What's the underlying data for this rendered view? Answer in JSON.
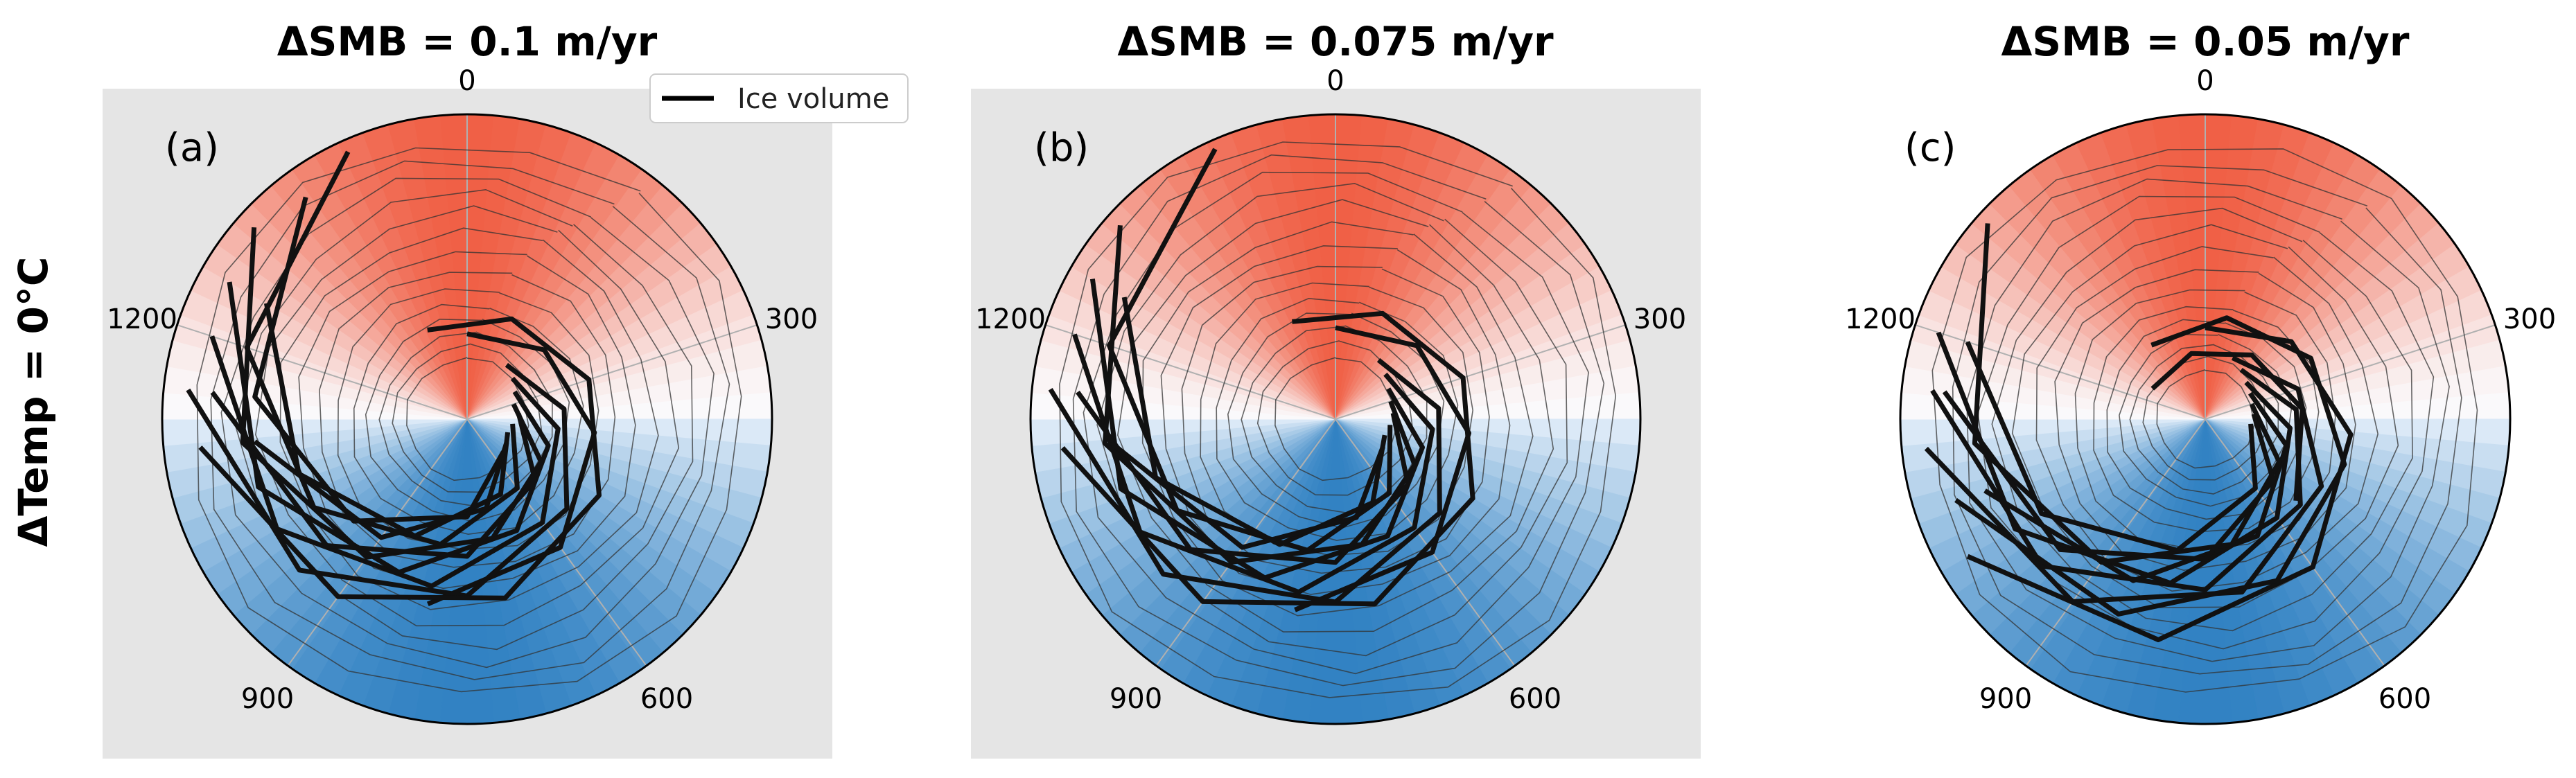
{
  "figure": {
    "row_label": "ΔTemp = 0°C",
    "legend": {
      "entries": [
        "Ice volume"
      ]
    }
  },
  "colors": {
    "warm": "#ef6f55",
    "cold": "#2f7fc1",
    "line": "#111111",
    "panel_bg": "#e5e5e5"
  },
  "chart_data": [
    {
      "type": "polar-line",
      "title": "ΔSMB = 0.1 m/yr",
      "panel_label": "(a)",
      "background": "grey",
      "angular_ticks": [
        {
          "value": 0,
          "label": "0"
        },
        {
          "value": 300,
          "label": "300"
        },
        {
          "value": 600,
          "label": "600"
        },
        {
          "value": 900,
          "label": "900"
        },
        {
          "value": 1200,
          "label": "1200"
        }
      ],
      "angular_period": 1500,
      "radial_range": [
        0,
        1
      ],
      "series": [
        {
          "role": "ice-volume",
          "segments": [
            {
              "t": [
                1500,
                1700,
                1900,
                2100,
                2300
              ],
              "r": [
                0.28,
                0.34,
                0.42,
                0.52,
                0.62
              ]
            },
            {
              "t": [
                1650,
                1850,
                2050,
                2250,
                2450,
                2650
              ],
              "r": [
                0.22,
                0.32,
                0.44,
                0.58,
                0.74,
                0.92
              ]
            },
            {
              "t": [
                1700,
                1900,
                2100,
                2300,
                2500,
                2700
              ],
              "r": [
                0.2,
                0.3,
                0.42,
                0.56,
                0.72,
                0.88
              ]
            },
            {
              "t": [
                1750,
                1950,
                2150,
                2350,
                2550,
                2750
              ],
              "r": [
                0.18,
                0.28,
                0.4,
                0.55,
                0.72,
                0.9
              ]
            },
            {
              "t": [
                1800,
                2000,
                2200,
                2400,
                2600,
                2800
              ],
              "r": [
                0.16,
                0.28,
                0.4,
                0.56,
                0.74,
                0.94
              ]
            },
            {
              "t": [
                1850,
                2050,
                2250,
                2450,
                2650
              ],
              "r": [
                0.17,
                0.3,
                0.45,
                0.62,
                0.84
              ]
            },
            {
              "t": [
                1900,
                2100,
                2300,
                2500,
                2700,
                2900
              ],
              "r": [
                0.15,
                0.28,
                0.42,
                0.58,
                0.76,
                0.96
              ]
            },
            {
              "t": [
                1950,
                2150,
                2350,
                2550,
                2750
              ],
              "r": [
                0.14,
                0.27,
                0.42,
                0.58,
                0.76
              ]
            },
            {
              "t": [
                2000,
                2200,
                2400,
                2600
              ],
              "r": [
                0.15,
                0.3,
                0.48,
                0.7
              ]
            },
            {
              "t": [
                2050,
                2250,
                2450,
                2650,
                2850
              ],
              "r": [
                0.16,
                0.32,
                0.5,
                0.7,
                0.9
              ]
            },
            {
              "t": [
                1400,
                1600,
                1800,
                2000,
                2200,
                2400,
                2600
              ],
              "r": [
                0.32,
                0.36,
                0.42,
                0.5,
                0.6,
                0.72,
                0.88
              ]
            }
          ]
        },
        {
          "role": "contours",
          "radii": [
            0.2,
            0.24,
            0.28,
            0.33,
            0.38,
            0.44,
            0.5,
            0.56,
            0.62,
            0.68,
            0.74,
            0.8,
            0.86,
            0.92
          ]
        }
      ]
    },
    {
      "type": "polar-line",
      "title": "ΔSMB = 0.075 m/yr",
      "panel_label": "(b)",
      "background": "grey",
      "angular_ticks": [
        {
          "value": 0,
          "label": "0"
        },
        {
          "value": 300,
          "label": "300"
        },
        {
          "value": 600,
          "label": "600"
        },
        {
          "value": 900,
          "label": "900"
        },
        {
          "value": 1200,
          "label": "1200"
        }
      ],
      "angular_period": 1500,
      "radial_range": [
        0,
        1
      ],
      "series": [
        {
          "role": "ice-volume",
          "segments": [
            {
              "t": [
                1500,
                1700,
                1900,
                2100,
                2300
              ],
              "r": [
                0.3,
                0.36,
                0.44,
                0.54,
                0.64
              ]
            },
            {
              "t": [
                1650,
                1850,
                2050,
                2250,
                2450,
                2650
              ],
              "r": [
                0.24,
                0.34,
                0.46,
                0.6,
                0.76,
                0.94
              ]
            },
            {
              "t": [
                1700,
                1900,
                2100,
                2300,
                2500,
                2700
              ],
              "r": [
                0.22,
                0.32,
                0.44,
                0.58,
                0.74,
                0.9
              ]
            },
            {
              "t": [
                1750,
                1950,
                2150,
                2350,
                2550,
                2750
              ],
              "r": [
                0.2,
                0.3,
                0.42,
                0.57,
                0.74,
                0.92
              ]
            },
            {
              "t": [
                1800,
                2000,
                2200,
                2400,
                2600,
                2800
              ],
              "r": [
                0.19,
                0.3,
                0.42,
                0.58,
                0.76,
                0.95
              ]
            },
            {
              "t": [
                1850,
                2050,
                2250,
                2450,
                2650
              ],
              "r": [
                0.19,
                0.32,
                0.47,
                0.64,
                0.85
              ]
            },
            {
              "t": [
                1900,
                2100,
                2300,
                2500,
                2700,
                2900
              ],
              "r": [
                0.18,
                0.3,
                0.44,
                0.6,
                0.78,
                0.97
              ]
            },
            {
              "t": [
                1950,
                2150,
                2350,
                2550,
                2750
              ],
              "r": [
                0.17,
                0.3,
                0.45,
                0.62,
                0.8
              ]
            },
            {
              "t": [
                2000,
                2200,
                2400,
                2600
              ],
              "r": [
                0.18,
                0.33,
                0.52,
                0.74
              ]
            },
            {
              "t": [
                1400,
                1600,
                1800,
                2000,
                2200,
                2400,
                2600
              ],
              "r": [
                0.35,
                0.38,
                0.44,
                0.52,
                0.62,
                0.74,
                0.9
              ]
            }
          ]
        },
        {
          "role": "contours",
          "radii": [
            0.2,
            0.25,
            0.3,
            0.35,
            0.4,
            0.46,
            0.52,
            0.58,
            0.64,
            0.7,
            0.76,
            0.82,
            0.88,
            0.94
          ]
        }
      ]
    },
    {
      "type": "polar-line",
      "title": "ΔSMB = 0.05 m/yr",
      "panel_label": "(c)",
      "background": "white",
      "angular_ticks": [
        {
          "value": 0,
          "label": "0"
        },
        {
          "value": 300,
          "label": "300"
        },
        {
          "value": 600,
          "label": "600"
        },
        {
          "value": 900,
          "label": "900"
        },
        {
          "value": 1200,
          "label": "1200"
        }
      ],
      "angular_period": 1500,
      "radial_range": [
        0,
        1
      ],
      "series": [
        {
          "role": "ice-volume",
          "segments": [
            {
              "t": [
                1500,
                1700,
                1900,
                2100,
                2300,
                2500
              ],
              "r": [
                0.3,
                0.38,
                0.48,
                0.6,
                0.74,
                0.9
              ]
            },
            {
              "t": [
                1600,
                1800,
                2000,
                2200,
                2400,
                2600
              ],
              "r": [
                0.22,
                0.32,
                0.44,
                0.58,
                0.74,
                0.92
              ]
            },
            {
              "t": [
                1650,
                1850,
                2050,
                2250,
                2450,
                2650
              ],
              "r": [
                0.2,
                0.3,
                0.42,
                0.56,
                0.72,
                0.9
              ]
            },
            {
              "t": [
                1700,
                1900,
                2100,
                2300,
                2500,
                2700
              ],
              "r": [
                0.18,
                0.28,
                0.4,
                0.55,
                0.72,
                0.92
              ]
            },
            {
              "t": [
                1750,
                1950,
                2150,
                2350,
                2550
              ],
              "r": [
                0.17,
                0.28,
                0.42,
                0.58,
                0.76
              ]
            },
            {
              "t": [
                1800,
                2000,
                2200,
                2400,
                2600,
                2800
              ],
              "r": [
                0.16,
                0.28,
                0.42,
                0.58,
                0.76,
                0.96
              ]
            },
            {
              "t": [
                1850,
                2050,
                2250,
                2450,
                2650
              ],
              "r": [
                0.16,
                0.3,
                0.46,
                0.64,
                0.86
              ]
            },
            {
              "t": [
                1900,
                2100,
                2300,
                2500,
                2700
              ],
              "r": [
                0.15,
                0.28,
                0.44,
                0.62,
                0.82
              ]
            },
            {
              "t": [
                1350,
                1550,
                1750,
                1950,
                2150,
                2350,
                2550
              ],
              "r": [
                0.3,
                0.34,
                0.4,
                0.48,
                0.58,
                0.7,
                0.86
              ]
            },
            {
              "t": [
                1250,
                1450,
                1650,
                1850,
                2050
              ],
              "r": [
                0.2,
                0.22,
                0.26,
                0.32,
                0.4
              ]
            }
          ]
        },
        {
          "role": "contours",
          "radii": [
            0.16,
            0.2,
            0.24,
            0.28,
            0.33,
            0.38,
            0.44,
            0.5,
            0.56,
            0.62,
            0.68,
            0.74,
            0.8,
            0.86,
            0.92
          ]
        }
      ]
    }
  ]
}
